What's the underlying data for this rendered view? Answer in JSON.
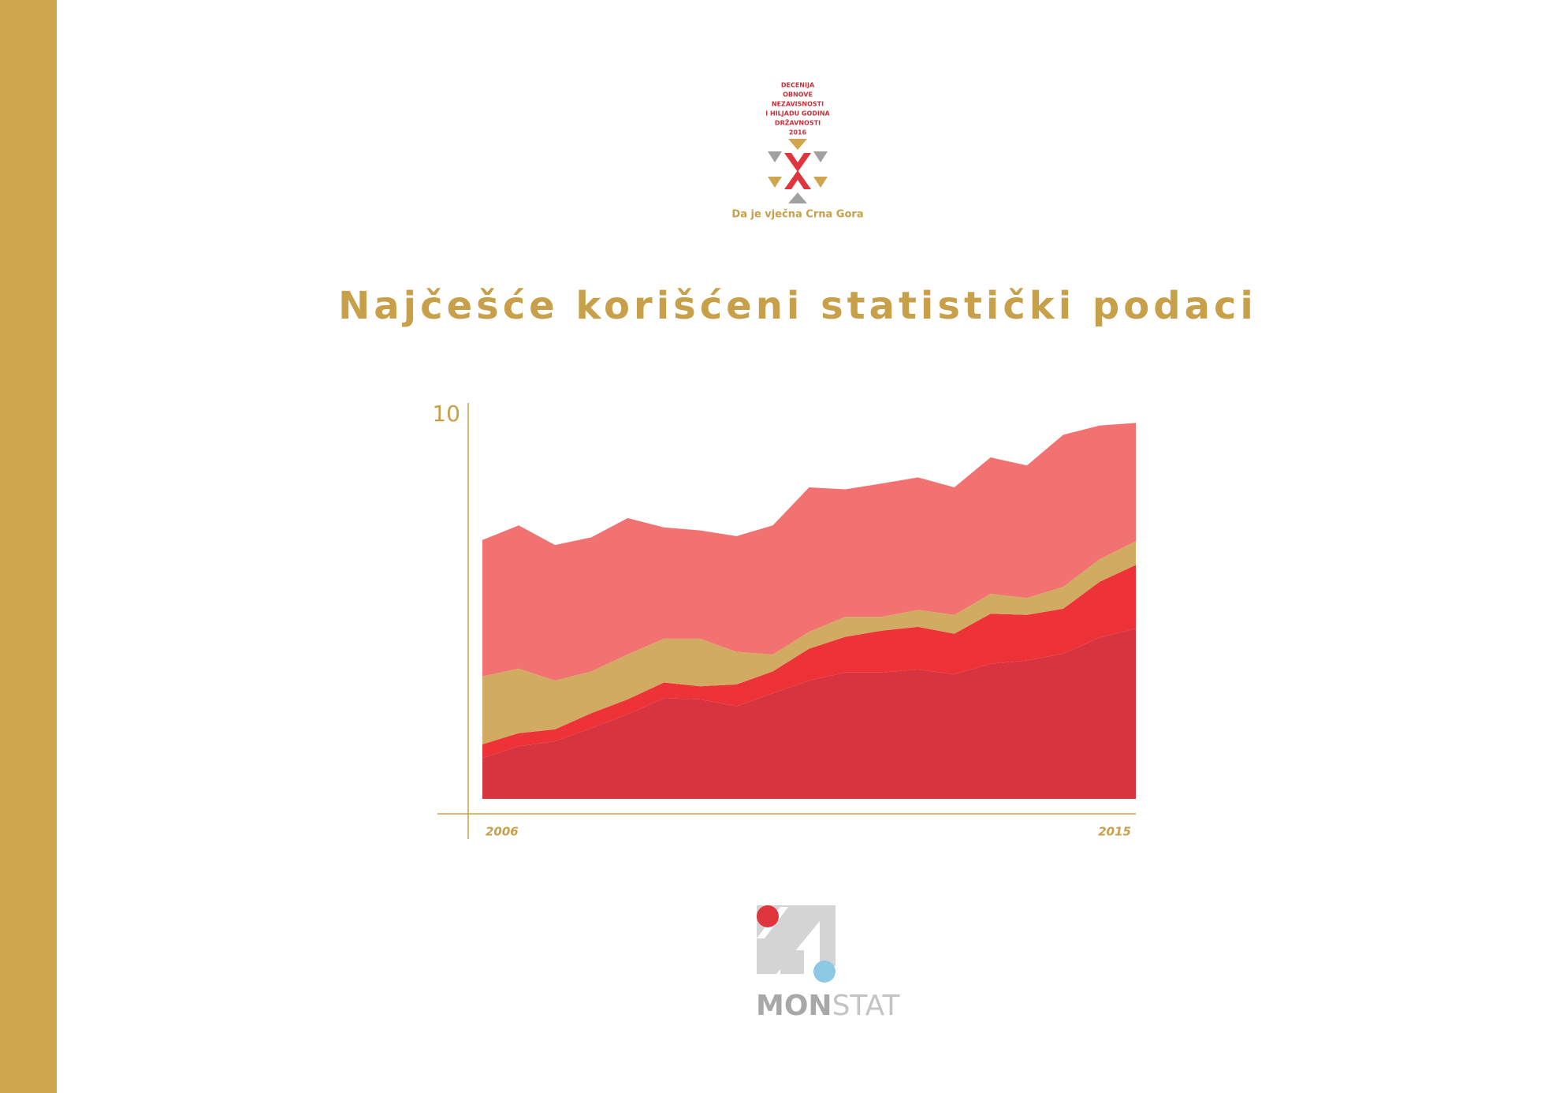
{
  "emblem": {
    "lines": [
      "DECENIJA",
      "OBNOVE",
      "NEZAVISNOSTI",
      "I HILJADU GODINA",
      "DRŽAVNOSTI",
      "2016"
    ],
    "motto": "Da je vječna Crna Gora"
  },
  "title": "Najčešće korišćeni statistički podaci",
  "chart_data": {
    "type": "area",
    "stacked": true,
    "x": [
      2006,
      2006.5,
      2007,
      2007.5,
      2008,
      2008.5,
      2009,
      2009.5,
      2010,
      2010.5,
      2011,
      2011.5,
      2012,
      2012.5,
      2013,
      2013.5,
      2014,
      2014.5,
      2015
    ],
    "xlim": [
      2006,
      2015
    ],
    "xticks": [
      2006,
      2015
    ],
    "ylim": [
      0,
      10
    ],
    "yticks": [
      10
    ],
    "series": [
      {
        "color": "#d7343f",
        "values": [
          1.06,
          1.37,
          1.5,
          1.84,
          2.2,
          2.62,
          2.59,
          2.41,
          2.75,
          3.08,
          3.29,
          3.29,
          3.37,
          3.24,
          3.52,
          3.6,
          3.78,
          4.2,
          4.43
        ]
      },
      {
        "color": "#ee3338",
        "values": [
          0.36,
          0.34,
          0.31,
          0.39,
          0.39,
          0.41,
          0.34,
          0.57,
          0.57,
          0.83,
          0.93,
          1.09,
          1.11,
          1.06,
          1.3,
          1.19,
          1.17,
          1.45,
          1.66
        ]
      },
      {
        "color": "#d1ab62",
        "values": [
          1.77,
          1.68,
          1.27,
          1.09,
          1.17,
          1.14,
          1.24,
          0.85,
          0.44,
          0.44,
          0.52,
          0.36,
          0.44,
          0.49,
          0.52,
          0.44,
          0.57,
          0.59,
          0.62
        ]
      },
      {
        "color": "#f27272",
        "values": [
          3.55,
          3.73,
          3.53,
          3.49,
          3.55,
          2.9,
          2.82,
          3.01,
          3.36,
          3.76,
          3.32,
          3.47,
          3.45,
          3.32,
          3.55,
          3.45,
          3.96,
          3.48,
          3.08
        ]
      }
    ]
  },
  "logo": {
    "text_parts": [
      "MON",
      "STAT"
    ]
  }
}
